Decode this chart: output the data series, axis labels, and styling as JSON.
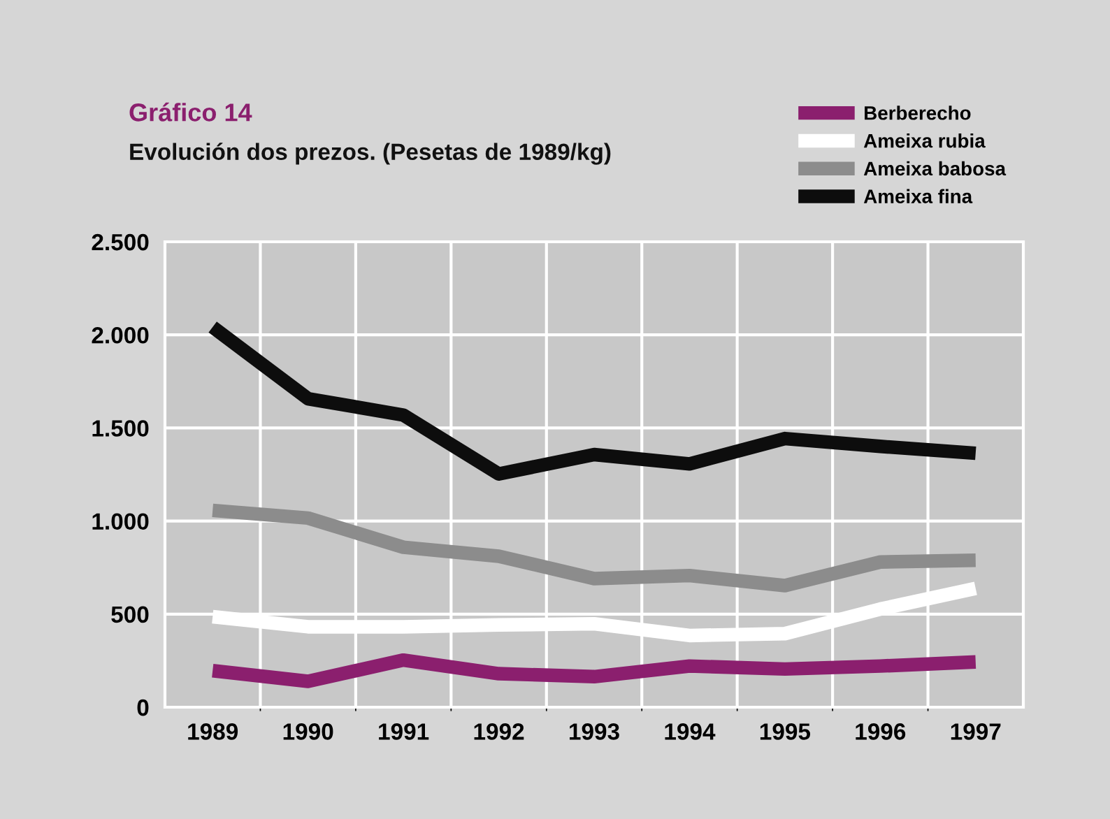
{
  "chart_data": {
    "type": "line",
    "title": "Gráfico 14",
    "subtitle": "Evolución dos prezos. (Pesetas de 1989/kg)",
    "categories": [
      "1989",
      "1990",
      "1991",
      "1992",
      "1993",
      "1994",
      "1995",
      "1996",
      "1997"
    ],
    "series": [
      {
        "name": "Berberecho",
        "color": "#8b1f6e",
        "values": [
          196,
          139,
          253,
          180,
          164,
          221,
          205,
          221,
          243
        ]
      },
      {
        "name": "Ameixa rubia",
        "color": "#ffffff",
        "values": [
          486,
          432,
          432,
          442,
          448,
          385,
          395,
          527,
          638
        ]
      },
      {
        "name": "Ameixa babosa",
        "color": "#8c8c8c",
        "values": [
          1057,
          1016,
          859,
          811,
          691,
          707,
          653,
          780,
          789
        ]
      },
      {
        "name": "Ameixa fina",
        "color": "#0d0d0d",
        "values": [
          2042,
          1657,
          1569,
          1253,
          1357,
          1307,
          1443,
          1401,
          1364
        ]
      }
    ],
    "ylim": [
      0,
      2500
    ],
    "yticks": [
      0,
      500,
      {
        "value": 1000,
        "label": "1.000"
      },
      {
        "value": 1500,
        "label": "1.500"
      },
      {
        "value": 2000,
        "label": "2.000"
      },
      {
        "value": 2500,
        "label": "2.500"
      }
    ],
    "grid": true,
    "legend": "top right",
    "marker": "none",
    "line_style": "solid"
  }
}
